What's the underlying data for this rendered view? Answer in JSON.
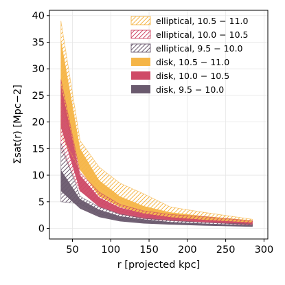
{
  "chart_data": {
    "type": "area",
    "xlabel": "r [projected kpc]",
    "ylabel": "Σsat(r) [Mpc−2]",
    "xlim": [
      20,
      305
    ],
    "ylim": [
      -2,
      41
    ],
    "xticks": [
      50,
      100,
      150,
      200,
      250,
      300
    ],
    "yticks": [
      0,
      5,
      10,
      15,
      20,
      25,
      30,
      35,
      40
    ],
    "grid": true,
    "legend_position": "top-right",
    "x": [
      35,
      60,
      85,
      112,
      143,
      178,
      222,
      285
    ],
    "series": [
      {
        "name": "elliptical, 10.5 − 11.0",
        "kind": "hatched",
        "color": "#f5b547",
        "lower": [
          17.5,
          11.0,
          7.8,
          5.2,
          3.6,
          2.6,
          2.0,
          1.2
        ],
        "upper": [
          39.0,
          16.5,
          11.5,
          8.5,
          6.5,
          4.0,
          3.0,
          1.7
        ]
      },
      {
        "name": "elliptical, 10.0 − 10.5",
        "kind": "hatched",
        "color": "#cf4a67",
        "lower": [
          15.0,
          7.0,
          4.8,
          3.2,
          2.3,
          1.8,
          1.4,
          0.8
        ],
        "upper": [
          28.0,
          10.5,
          6.8,
          4.5,
          3.3,
          2.6,
          2.2,
          1.4
        ]
      },
      {
        "name": "elliptical, 9.5 − 10.0",
        "kind": "hatched",
        "color": "#6a5a6e",
        "lower": [
          5.0,
          4.6,
          2.7,
          1.7,
          1.2,
          0.9,
          0.7,
          0.4
        ],
        "upper": [
          16.0,
          6.0,
          4.0,
          2.7,
          1.9,
          1.5,
          1.1,
          0.8
        ]
      },
      {
        "name": "disk, 10.5 − 11.0",
        "kind": "filled",
        "color": "#f5b547",
        "lower": [
          24.0,
          11.0,
          6.0,
          4.0,
          2.7,
          1.9,
          1.4,
          0.9
        ],
        "upper": [
          35.5,
          15.0,
          9.0,
          6.0,
          4.2,
          3.0,
          2.3,
          1.5
        ]
      },
      {
        "name": "disk, 10.0 − 10.5",
        "kind": "filled",
        "color": "#cf4a67",
        "lower": [
          19.0,
          7.0,
          4.0,
          2.6,
          1.8,
          1.4,
          1.1,
          0.6
        ],
        "upper": [
          27.0,
          10.0,
          5.8,
          3.9,
          2.8,
          2.1,
          1.6,
          1.1
        ]
      },
      {
        "name": "disk, 9.5 − 10.0",
        "kind": "filled",
        "color": "#6a5a6e",
        "lower": [
          7.0,
          3.7,
          2.1,
          1.3,
          0.9,
          0.7,
          0.5,
          0.3
        ],
        "upper": [
          11.0,
          5.5,
          3.5,
          2.3,
          1.7,
          1.2,
          0.9,
          0.6
        ]
      }
    ]
  }
}
